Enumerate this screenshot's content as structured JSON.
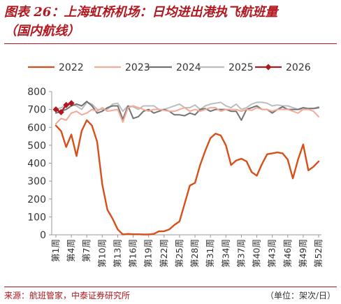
{
  "header": {
    "title_line1": "图表 26：上海虹桥机场：日均进出港执飞航班量",
    "title_line2": "（国内航线）"
  },
  "footer": {
    "source": "来源：航班管家，中泰证券研究所",
    "unit": "（单位：架次/日）"
  },
  "colors": {
    "title": "#b0171f",
    "s2022": "#d94f1a",
    "s2023": "#f3a996",
    "s2024": "#737373",
    "s2025": "#bdbdbd",
    "s2026": "#b0171f"
  },
  "chart_data": {
    "type": "line",
    "title": "",
    "xlabel": "",
    "ylabel": "",
    "ylim": [
      0,
      800
    ],
    "yticks": [
      0,
      100,
      200,
      300,
      400,
      500,
      600,
      700,
      800
    ],
    "x_tick_labels": [
      "第1周",
      "第4周",
      "第7周",
      "第10周",
      "第13周",
      "第16周",
      "第19周",
      "第22周",
      "第25周",
      "第28周",
      "第31周",
      "第34周",
      "第37周",
      "第40周",
      "第43周",
      "第46周",
      "第49周",
      "第52周"
    ],
    "x_tick_weeks": [
      1,
      4,
      7,
      10,
      13,
      16,
      19,
      22,
      25,
      28,
      31,
      34,
      37,
      40,
      43,
      46,
      49,
      52
    ],
    "x_range": [
      1,
      52
    ],
    "grid": false,
    "legend_position": "top",
    "series": [
      {
        "name": "2022",
        "x": [
          1,
          2,
          3,
          4,
          5,
          6,
          7,
          8,
          9,
          10,
          11,
          12,
          13,
          14,
          15,
          16,
          17,
          18,
          19,
          20,
          21,
          22,
          23,
          24,
          25,
          26,
          27,
          28,
          29,
          30,
          31,
          32,
          33,
          34,
          35,
          36,
          37,
          38,
          39,
          40,
          41,
          42,
          43,
          44,
          45,
          46,
          47,
          48,
          49,
          50,
          51,
          52
        ],
        "values": [
          610,
          580,
          490,
          560,
          440,
          580,
          640,
          610,
          520,
          280,
          140,
          90,
          30,
          2,
          5,
          3,
          3,
          2,
          2,
          5,
          20,
          20,
          30,
          55,
          75,
          175,
          275,
          290,
          390,
          470,
          540,
          565,
          555,
          500,
          390,
          415,
          425,
          410,
          350,
          330,
          395,
          450,
          455,
          460,
          455,
          420,
          315,
          420,
          505,
          360,
          380,
          410
        ]
      },
      {
        "name": "2023",
        "x": [
          1,
          2,
          3,
          4,
          5,
          6,
          7,
          8,
          9,
          10,
          11,
          12,
          13,
          14,
          15,
          16,
          17,
          18,
          19,
          20,
          21,
          22,
          23,
          24,
          25,
          26,
          27,
          28,
          29,
          30,
          31,
          32,
          33,
          34,
          35,
          36,
          37,
          38,
          39,
          40,
          41,
          42,
          43,
          44,
          45,
          46,
          47,
          48,
          49,
          50,
          51,
          52
        ],
        "values": [
          620,
          650,
          640,
          680,
          690,
          670,
          680,
          700,
          690,
          710,
          690,
          695,
          700,
          630,
          710,
          720,
          710,
          700,
          690,
          700,
          700,
          695,
          690,
          690,
          700,
          710,
          690,
          700,
          690,
          700,
          710,
          710,
          690,
          700,
          700,
          700,
          690,
          700,
          695,
          710,
          700,
          700,
          690,
          700,
          700,
          700,
          690,
          680,
          700,
          700,
          690,
          660
        ]
      },
      {
        "name": "2024",
        "x": [
          1,
          2,
          3,
          4,
          5,
          6,
          7,
          8,
          9,
          10,
          11,
          12,
          13,
          14,
          15,
          16,
          17,
          18,
          19,
          20,
          21,
          22,
          23,
          24,
          25,
          26,
          27,
          28,
          29,
          30,
          31,
          32,
          33,
          34,
          35,
          36,
          37,
          38,
          39,
          40,
          41,
          42,
          43,
          44,
          45,
          46,
          47,
          48,
          49,
          50,
          51,
          52
        ],
        "values": [
          680,
          690,
          700,
          720,
          730,
          720,
          745,
          720,
          680,
          690,
          710,
          720,
          720,
          645,
          720,
          650,
          660,
          690,
          700,
          680,
          690,
          700,
          690,
          670,
          670,
          665,
          680,
          670,
          700,
          705,
          690,
          700,
          700,
          700,
          690,
          690,
          640,
          700,
          710,
          720,
          700,
          700,
          680,
          700,
          715,
          700,
          700,
          700,
          710,
          705,
          705,
          710
        ]
      },
      {
        "name": "2025",
        "x": [
          1,
          2,
          3,
          4,
          5,
          6,
          7,
          8,
          9,
          10,
          11,
          12,
          13,
          14,
          15,
          16,
          17,
          18,
          19,
          20,
          21,
          22,
          23,
          24,
          25,
          26,
          27,
          28,
          29,
          30,
          31,
          32,
          33,
          34,
          35,
          36,
          37,
          38,
          39,
          40,
          41,
          42,
          43,
          44,
          45,
          46,
          47,
          48,
          49,
          50,
          51,
          52
        ],
        "values": [
          700,
          710,
          720,
          730,
          720,
          700,
          740,
          730,
          700,
          700,
          700,
          730,
          735,
          690,
          720,
          715,
          700,
          720,
          720,
          720,
          700,
          700,
          710,
          720,
          730,
          710,
          710,
          725,
          700,
          720,
          730,
          735,
          740,
          720,
          710,
          730,
          700,
          710,
          730,
          740,
          740,
          735,
          720,
          725,
          720,
          720,
          710,
          700,
          700,
          705,
          705,
          715
        ]
      },
      {
        "name": "2026",
        "x": [
          1,
          2,
          3,
          4
        ],
        "values": [
          700,
          685,
          725,
          735
        ]
      }
    ]
  }
}
